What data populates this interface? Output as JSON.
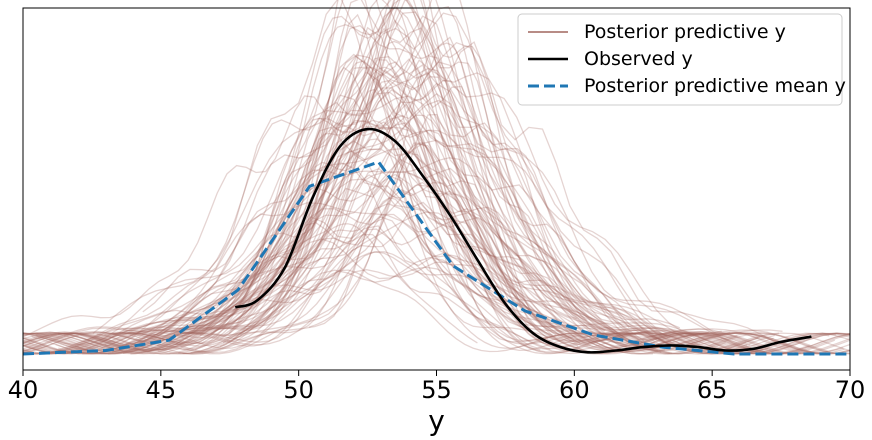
{
  "chart_data": {
    "type": "line",
    "title": "",
    "xlabel": "y",
    "ylabel": "",
    "xlim": [
      40,
      70
    ],
    "ylim": [
      0,
      0.2
    ],
    "xticks": [
      40,
      45,
      50,
      55,
      60,
      65,
      70
    ],
    "yticks_visible": false,
    "grid": false,
    "legend_position": "top-right",
    "colors": {
      "posterior_predictive": "#a1665e",
      "observed": "#000000",
      "mean": "#1f77b4"
    },
    "series": [
      {
        "name": "Observed y",
        "style": "solid",
        "x": [
          47.7,
          48.5,
          49.5,
          50.5,
          51.5,
          52.5,
          53.5,
          54.5,
          55.5,
          56.5,
          57.5,
          58.5,
          59.5,
          60.5,
          61.5,
          62.5,
          63.5,
          64.5,
          65.5,
          66.5,
          67.5,
          68.6
        ],
        "y": [
          0.027,
          0.031,
          0.05,
          0.09,
          0.12,
          0.13,
          0.123,
          0.103,
          0.08,
          0.054,
          0.029,
          0.012,
          0.004,
          0.001,
          0.002,
          0.004,
          0.005,
          0.004,
          0.002,
          0.003,
          0.007,
          0.01
        ]
      },
      {
        "name": "Posterior predictive mean y",
        "style": "dashed",
        "x": [
          40,
          43,
          45.3,
          47.8,
          50.4,
          52.9,
          55.6,
          58.2,
          60.7,
          63.2,
          65.8,
          68.3,
          70
        ],
        "y": [
          0.0,
          0.002,
          0.008,
          0.037,
          0.097,
          0.111,
          0.051,
          0.025,
          0.011,
          0.004,
          0.0,
          0.0,
          0.0
        ]
      },
      {
        "name": "Posterior predictive y",
        "style": "ensemble",
        "count": 100,
        "x_range": [
          40,
          70
        ],
        "mean_center": 53.2,
        "sd": 2.8,
        "peak_range": [
          0.04,
          0.2
        ]
      }
    ]
  }
}
